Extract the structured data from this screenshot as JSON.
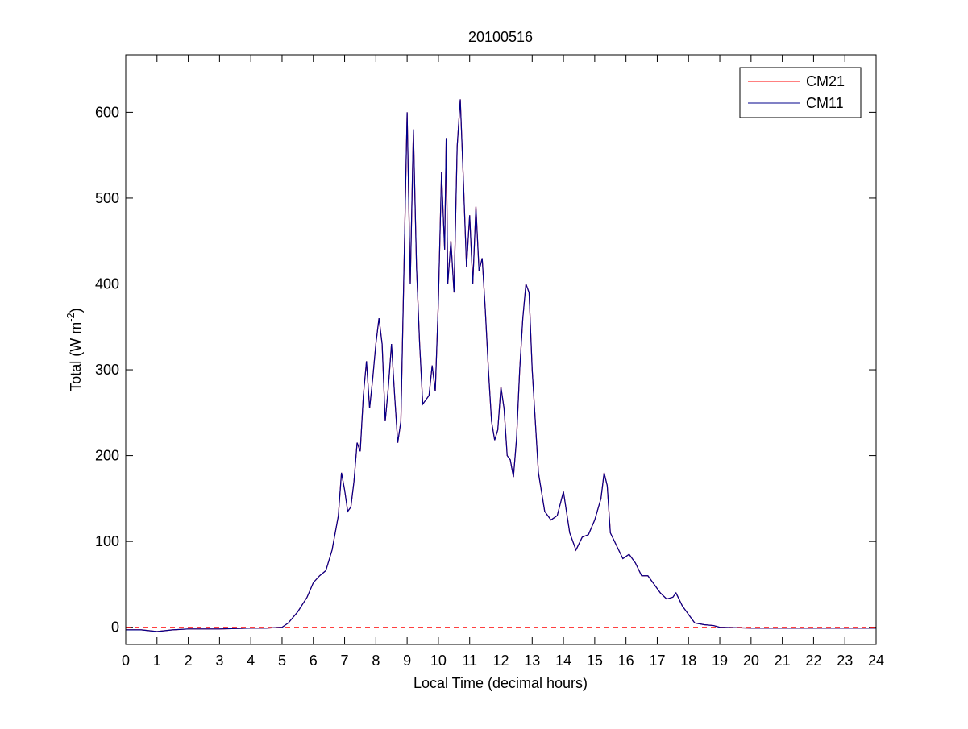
{
  "chart_data": {
    "type": "line",
    "title": "20100516",
    "xlabel": "Local Time (decimal hours)",
    "ylabel": {
      "text": "Total (W m",
      "superscript": "-2",
      "suffix": ")"
    },
    "x": [
      0,
      0.5,
      1,
      1.5,
      2,
      3,
      4,
      4.5,
      5,
      5.2,
      5.5,
      5.8,
      6.0,
      6.2,
      6.4,
      6.6,
      6.8,
      6.9,
      7.0,
      7.1,
      7.2,
      7.3,
      7.4,
      7.5,
      7.6,
      7.7,
      7.8,
      7.9,
      8.0,
      8.1,
      8.2,
      8.3,
      8.4,
      8.5,
      8.6,
      8.7,
      8.8,
      8.9,
      9.0,
      9.1,
      9.2,
      9.3,
      9.4,
      9.5,
      9.6,
      9.7,
      9.8,
      9.9,
      10.0,
      10.1,
      10.2,
      10.25,
      10.3,
      10.4,
      10.5,
      10.6,
      10.7,
      10.8,
      10.9,
      11.0,
      11.1,
      11.2,
      11.3,
      11.4,
      11.5,
      11.6,
      11.7,
      11.8,
      11.9,
      12.0,
      12.1,
      12.2,
      12.3,
      12.4,
      12.5,
      12.6,
      12.7,
      12.8,
      12.9,
      13.0,
      13.2,
      13.4,
      13.6,
      13.8,
      14.0,
      14.2,
      14.4,
      14.6,
      14.8,
      15.0,
      15.2,
      15.3,
      15.4,
      15.5,
      15.7,
      15.9,
      16.1,
      16.3,
      16.5,
      16.7,
      16.9,
      17.1,
      17.3,
      17.5,
      17.6,
      17.8,
      18.0,
      18.2,
      18.5,
      18.8,
      19,
      20,
      21,
      22,
      23,
      24
    ],
    "series": [
      {
        "name": "CM21",
        "color": "#ff0000",
        "values": [
          -3,
          -3,
          -5,
          -3,
          -2,
          -2,
          -1,
          -1,
          0,
          5,
          18,
          35,
          52,
          60,
          66,
          90,
          130,
          180,
          160,
          135,
          140,
          170,
          215,
          205,
          270,
          310,
          255,
          290,
          330,
          360,
          330,
          240,
          280,
          330,
          270,
          215,
          240,
          420,
          600,
          400,
          580,
          420,
          330,
          260,
          265,
          270,
          305,
          275,
          380,
          530,
          440,
          570,
          400,
          450,
          390,
          560,
          615,
          520,
          420,
          480,
          400,
          490,
          415,
          430,
          370,
          300,
          240,
          218,
          230,
          280,
          255,
          200,
          195,
          175,
          220,
          300,
          360,
          400,
          390,
          300,
          180,
          135,
          125,
          130,
          158,
          110,
          90,
          105,
          108,
          125,
          150,
          180,
          165,
          110,
          95,
          80,
          85,
          75,
          60,
          60,
          50,
          40,
          33,
          35,
          40,
          25,
          15,
          5,
          3,
          2,
          0,
          -1,
          -1,
          -1,
          -1,
          -1
        ]
      },
      {
        "name": "CM11",
        "color": "#00008b",
        "values": [
          -3,
          -3,
          -5,
          -3,
          -2,
          -2,
          -1,
          -1,
          0,
          5,
          18,
          35,
          52,
          60,
          66,
          90,
          130,
          180,
          160,
          135,
          140,
          170,
          215,
          205,
          270,
          310,
          255,
          290,
          330,
          360,
          330,
          240,
          280,
          330,
          270,
          215,
          240,
          420,
          600,
          400,
          580,
          420,
          330,
          260,
          265,
          270,
          305,
          275,
          380,
          530,
          440,
          570,
          400,
          450,
          390,
          560,
          615,
          520,
          420,
          480,
          400,
          490,
          415,
          430,
          370,
          300,
          240,
          218,
          230,
          280,
          255,
          200,
          195,
          175,
          220,
          300,
          360,
          400,
          390,
          300,
          180,
          135,
          125,
          130,
          158,
          110,
          90,
          105,
          108,
          125,
          150,
          180,
          165,
          110,
          95,
          80,
          85,
          75,
          60,
          60,
          50,
          40,
          33,
          35,
          40,
          25,
          15,
          5,
          3,
          2,
          0,
          -1,
          -1,
          -1,
          -1,
          -1
        ]
      }
    ],
    "xlim": [
      0,
      24
    ],
    "ylim": [
      -20,
      667
    ],
    "xticks": [
      0,
      1,
      2,
      3,
      4,
      5,
      6,
      7,
      8,
      9,
      10,
      11,
      12,
      13,
      14,
      15,
      16,
      17,
      18,
      19,
      20,
      21,
      22,
      23,
      24
    ],
    "yticks": [
      0,
      100,
      200,
      300,
      400,
      500,
      600
    ],
    "reference_line": {
      "value": 0,
      "color": "#ff0000",
      "style": "dashed"
    },
    "legend": "northeast"
  }
}
